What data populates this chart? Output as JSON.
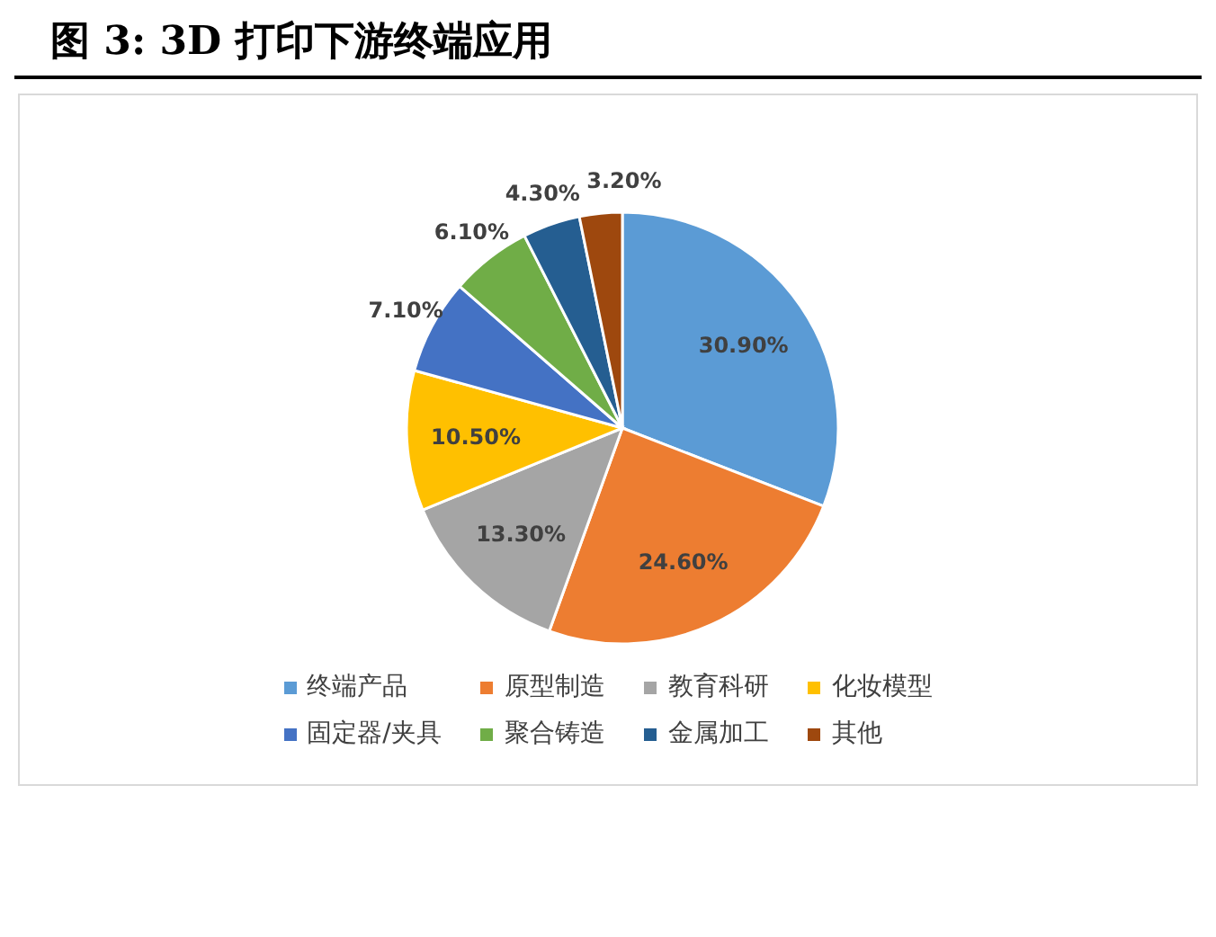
{
  "chart_data": {
    "type": "pie",
    "title": "图 3:  3D 打印下游终端应用",
    "categories": [
      "终端产品",
      "原型制造",
      "教育科研",
      "化妆模型",
      "固定器/夹具",
      "聚合铸造",
      "金属加工",
      "其他"
    ],
    "values": [
      30.9,
      24.6,
      13.3,
      10.5,
      7.1,
      6.1,
      4.3,
      3.2
    ],
    "value_labels": [
      "30.90%",
      "24.60%",
      "13.30%",
      "10.50%",
      "7.10%",
      "6.10%",
      "4.30%",
      "3.20%"
    ],
    "colors": [
      "#5b9bd5",
      "#ed7d31",
      "#a5a5a5",
      "#ffc000",
      "#4472c4",
      "#70ad47",
      "#255e91",
      "#9e480e"
    ],
    "legend": "bottom"
  }
}
